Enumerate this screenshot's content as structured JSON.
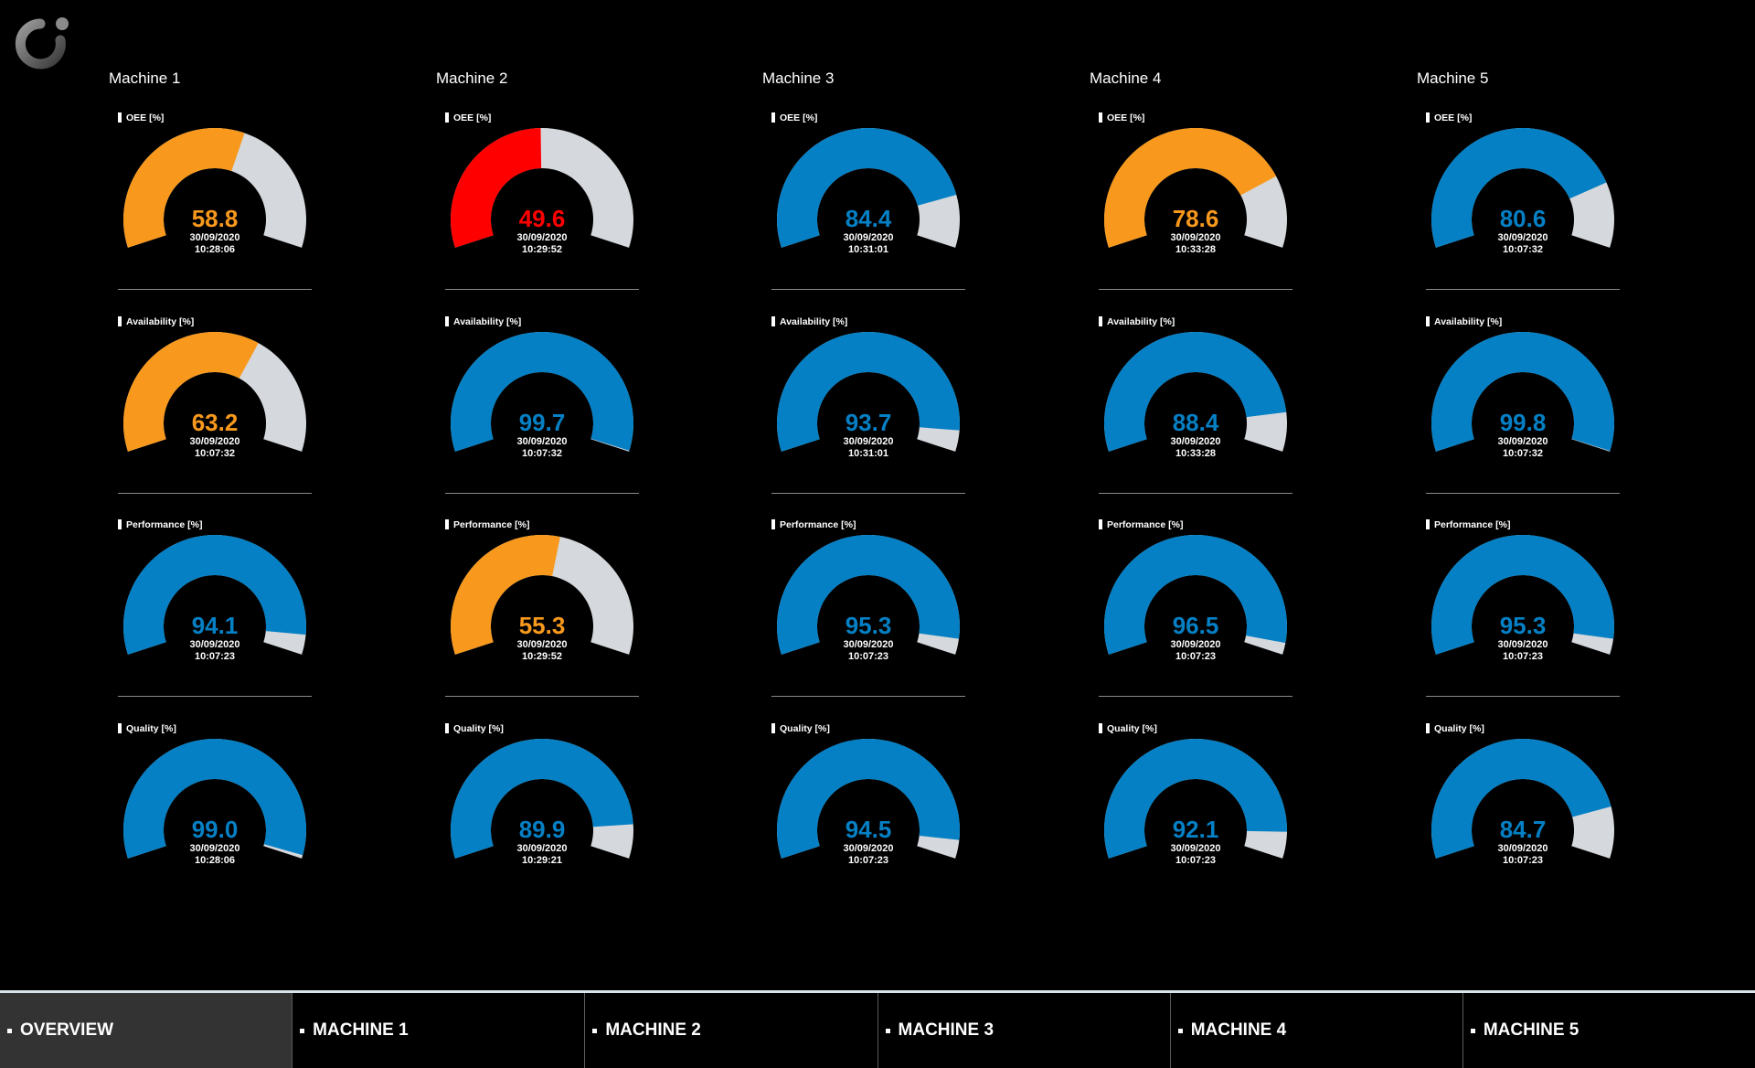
{
  "colors": {
    "background": "#000000",
    "blue": "#0580c5",
    "orange": "#f8991d",
    "red": "#ff0000",
    "track": "#d5d8dc"
  },
  "logo": {
    "icon": "logo-icon"
  },
  "machines": [
    {
      "title": "Machine 1",
      "kpis": [
        {
          "label": "OEE [%]",
          "value": 58.8,
          "display": "58.8",
          "status": "orange",
          "date": "30/09/2020",
          "time": "10:28:06"
        },
        {
          "label": "Availability [%]",
          "value": 63.2,
          "display": "63.2",
          "status": "orange",
          "date": "30/09/2020",
          "time": "10:07:32"
        },
        {
          "label": "Performance [%]",
          "value": 94.1,
          "display": "94.1",
          "status": "blue",
          "date": "30/09/2020",
          "time": "10:07:23"
        },
        {
          "label": "Quality [%]",
          "value": 99.0,
          "display": "99.0",
          "status": "blue",
          "date": "30/09/2020",
          "time": "10:28:06"
        }
      ]
    },
    {
      "title": "Machine 2",
      "kpis": [
        {
          "label": "OEE [%]",
          "value": 49.6,
          "display": "49.6",
          "status": "red",
          "date": "30/09/2020",
          "time": "10:29:52"
        },
        {
          "label": "Availability [%]",
          "value": 99.7,
          "display": "99.7",
          "status": "blue",
          "date": "30/09/2020",
          "time": "10:07:32"
        },
        {
          "label": "Performance [%]",
          "value": 55.3,
          "display": "55.3",
          "status": "orange",
          "date": "30/09/2020",
          "time": "10:29:52"
        },
        {
          "label": "Quality [%]",
          "value": 89.9,
          "display": "89.9",
          "status": "blue",
          "date": "30/09/2020",
          "time": "10:29:21"
        }
      ]
    },
    {
      "title": "Machine 3",
      "kpis": [
        {
          "label": "OEE [%]",
          "value": 84.4,
          "display": "84.4",
          "status": "blue",
          "date": "30/09/2020",
          "time": "10:31:01"
        },
        {
          "label": "Availability [%]",
          "value": 93.7,
          "display": "93.7",
          "status": "blue",
          "date": "30/09/2020",
          "time": "10:31:01"
        },
        {
          "label": "Performance [%]",
          "value": 95.3,
          "display": "95.3",
          "status": "blue",
          "date": "30/09/2020",
          "time": "10:07:23"
        },
        {
          "label": "Quality [%]",
          "value": 94.5,
          "display": "94.5",
          "status": "blue",
          "date": "30/09/2020",
          "time": "10:07:23"
        }
      ]
    },
    {
      "title": "Machine 4",
      "kpis": [
        {
          "label": "OEE [%]",
          "value": 78.6,
          "display": "78.6",
          "status": "orange",
          "date": "30/09/2020",
          "time": "10:33:28"
        },
        {
          "label": "Availability [%]",
          "value": 88.4,
          "display": "88.4",
          "status": "blue",
          "date": "30/09/2020",
          "time": "10:33:28"
        },
        {
          "label": "Performance [%]",
          "value": 96.5,
          "display": "96.5",
          "status": "blue",
          "date": "30/09/2020",
          "time": "10:07:23"
        },
        {
          "label": "Quality [%]",
          "value": 92.1,
          "display": "92.1",
          "status": "blue",
          "date": "30/09/2020",
          "time": "10:07:23"
        }
      ]
    },
    {
      "title": "Machine 5",
      "kpis": [
        {
          "label": "OEE [%]",
          "value": 80.6,
          "display": "80.6",
          "status": "blue",
          "date": "30/09/2020",
          "time": "10:07:32"
        },
        {
          "label": "Availability [%]",
          "value": 99.8,
          "display": "99.8",
          "status": "blue",
          "date": "30/09/2020",
          "time": "10:07:32"
        },
        {
          "label": "Performance [%]",
          "value": 95.3,
          "display": "95.3",
          "status": "blue",
          "date": "30/09/2020",
          "time": "10:07:23"
        },
        {
          "label": "Quality [%]",
          "value": 84.7,
          "display": "84.7",
          "status": "blue",
          "date": "30/09/2020",
          "time": "10:07:23"
        }
      ]
    }
  ],
  "nav": {
    "tabs": [
      {
        "label": "Overview",
        "active": true
      },
      {
        "label": "Machine 1",
        "active": false
      },
      {
        "label": "Machine 2",
        "active": false
      },
      {
        "label": "Machine 3",
        "active": false
      },
      {
        "label": "Machine 4",
        "active": false
      },
      {
        "label": "Machine 5",
        "active": false
      }
    ]
  }
}
